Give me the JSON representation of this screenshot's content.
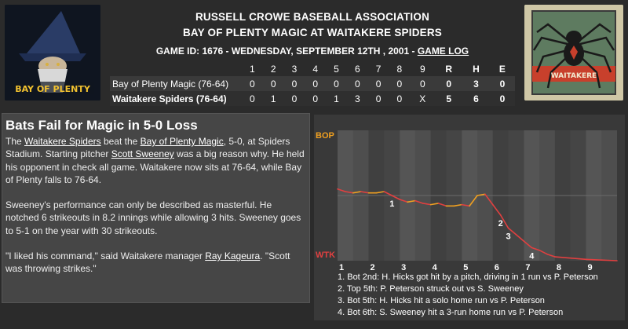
{
  "header": {
    "line1": "RUSSELL CROWE BASEBALL ASSOCIATION",
    "line2": "BAY OF PLENTY MAGIC AT WAITAKERE SPIDERS",
    "game_info": "GAME ID: 1676 - WEDNESDAY, SEPTEMBER 12TH , 2001 - ",
    "game_log_link": "GAME LOG"
  },
  "logos": {
    "left_text": "BAY OF PLENTY",
    "right_text": "WAITAKERE"
  },
  "linescore": {
    "columns": [
      "1",
      "2",
      "3",
      "4",
      "5",
      "6",
      "7",
      "8",
      "9",
      "R",
      "H",
      "E"
    ],
    "rows": [
      {
        "team": "Bay of Plenty Magic (76-64)",
        "cells": [
          "0",
          "0",
          "0",
          "0",
          "0",
          "0",
          "0",
          "0",
          "0",
          "0",
          "3",
          "0"
        ]
      },
      {
        "team": "Waitakere Spiders (76-64)",
        "cells": [
          "0",
          "1",
          "0",
          "0",
          "1",
          "3",
          "0",
          "0",
          "X",
          "5",
          "6",
          "0"
        ]
      }
    ]
  },
  "story": {
    "title": "Bats Fail for Magic in 5-0 Loss",
    "p1": {
      "t0": "The ",
      "l0": "Waitakere Spiders",
      "t1": " beat the ",
      "l1": "Bay of Plenty Magic",
      "t2": ", 5-0, at Spiders Stadium. Starting pitcher ",
      "l2": "Scott Sweeney",
      "t3": " was a big reason why. He held his opponent in check all game. Waitakere now sits at 76-64, while Bay of Plenty falls to 76-64."
    },
    "p2": "Sweeney's performance can only be described as masterful. He notched 6 strikeouts in 8.2 innings while allowing 3 hits. Sweeney goes to 5-1 on the year with 30 strikeouts.",
    "p3": {
      "t0": "\"I liked his command,\" said Waitakere manager ",
      "l0": "Ray Kageura",
      "t1": ". \"Scott was throwing strikes.\""
    }
  },
  "chart_data": {
    "type": "line",
    "top_label": "BOP",
    "bottom_label": "WTK",
    "colors": {
      "top": "#f0a020",
      "bottom": "#e04040",
      "line_up": "#f0a020",
      "line_down": "#e04040"
    },
    "x_ticks": [
      "1",
      "2",
      "3",
      "4",
      "5",
      "6",
      "7",
      "8",
      "9"
    ],
    "ylim": [
      0,
      1
    ],
    "series": [
      {
        "values": [
          [
            0.0,
            0.55
          ],
          [
            0.25,
            0.53
          ],
          [
            0.5,
            0.52
          ],
          [
            0.75,
            0.53
          ],
          [
            1.0,
            0.52
          ],
          [
            1.25,
            0.52
          ],
          [
            1.5,
            0.53
          ],
          [
            1.75,
            0.5
          ],
          [
            2.0,
            0.47
          ],
          [
            2.25,
            0.45
          ],
          [
            2.5,
            0.46
          ],
          [
            2.75,
            0.44
          ],
          [
            3.0,
            0.43
          ],
          [
            3.25,
            0.44
          ],
          [
            3.5,
            0.42
          ],
          [
            3.75,
            0.42
          ],
          [
            4.0,
            0.43
          ],
          [
            4.25,
            0.42
          ],
          [
            4.5,
            0.5
          ],
          [
            4.75,
            0.51
          ],
          [
            5.0,
            0.43
          ],
          [
            5.25,
            0.35
          ],
          [
            5.5,
            0.25
          ],
          [
            5.75,
            0.2
          ],
          [
            6.0,
            0.15
          ],
          [
            6.25,
            0.1
          ],
          [
            6.5,
            0.08
          ],
          [
            6.75,
            0.05
          ],
          [
            7.0,
            0.03
          ],
          [
            7.5,
            0.02
          ],
          [
            8.0,
            0.01
          ],
          [
            8.5,
            0.005
          ],
          [
            9.0,
            0.0
          ]
        ]
      }
    ],
    "annotations": [
      {
        "label": "1",
        "x": 1.75
      },
      {
        "label": "2",
        "x": 5.25
      },
      {
        "label": "3",
        "x": 5.5
      },
      {
        "label": "4",
        "x": 6.25
      }
    ],
    "legend": [
      "1. Bot 2nd: H. Hicks got hit by a pitch, driving in 1 run vs P. Peterson",
      "2. Top 5th: P. Peterson struck out vs S. Sweeney",
      "3. Bot 5th: H. Hicks hit a solo home run vs P. Peterson",
      "4. Bot 6th: S. Sweeney hit a 3-run home run vs P. Peterson"
    ]
  }
}
